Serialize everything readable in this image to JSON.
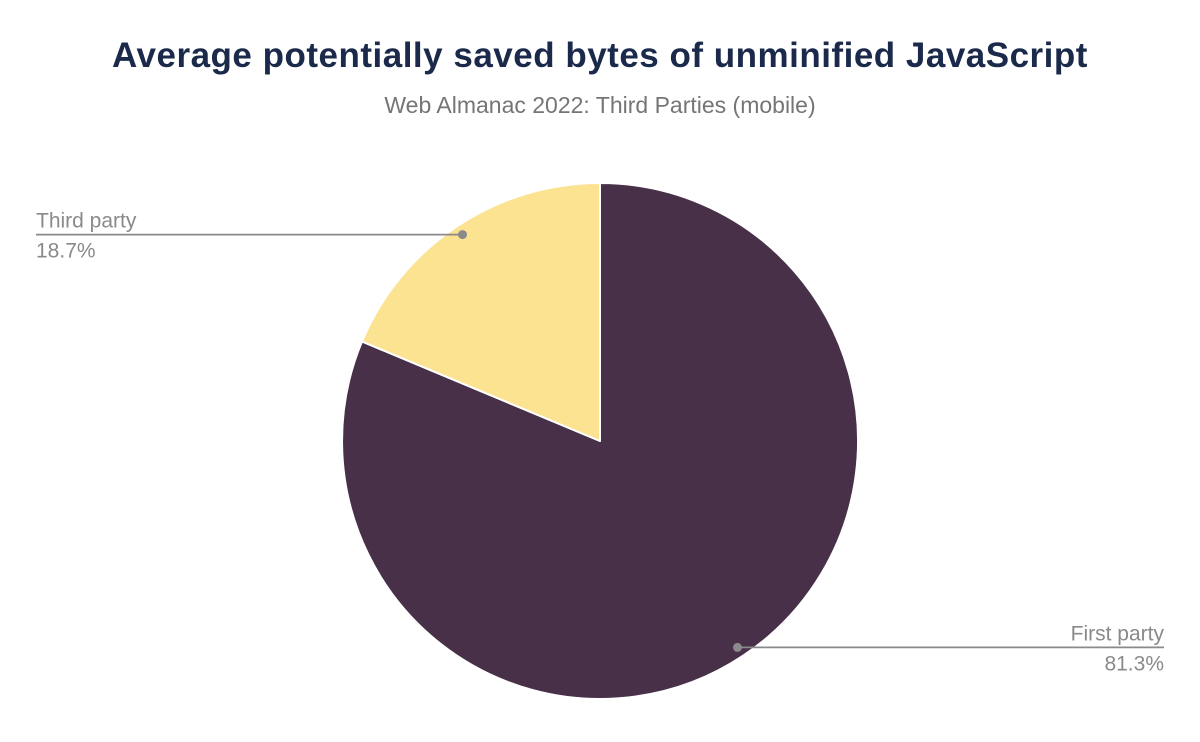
{
  "header": {
    "title": "Average potentially saved bytes of unminified JavaScript",
    "subtitle": "Web Almanac 2022: Third Parties (mobile)"
  },
  "chart_data": {
    "type": "pie",
    "title": "Average potentially saved bytes of unminified JavaScript",
    "subtitle": "Web Almanac 2022: Third Parties (mobile)",
    "start_angle_deg": -90,
    "direction": "clockwise",
    "legend": "none",
    "label_style": "outside-leader-lines",
    "slices": [
      {
        "label": "First party",
        "value": 81.3,
        "pct_label": "81.3%",
        "color": "#483048",
        "label_side": "right"
      },
      {
        "label": "Third party",
        "value": 18.7,
        "pct_label": "18.7%",
        "color": "#fce392",
        "label_side": "left"
      }
    ]
  },
  "colors": {
    "title": "#1b2a4a",
    "subtitle": "#757575",
    "label_gray": "#8a8a8a",
    "background": "#ffffff",
    "slice_first_party": "#483048",
    "slice_third_party": "#fce392"
  }
}
